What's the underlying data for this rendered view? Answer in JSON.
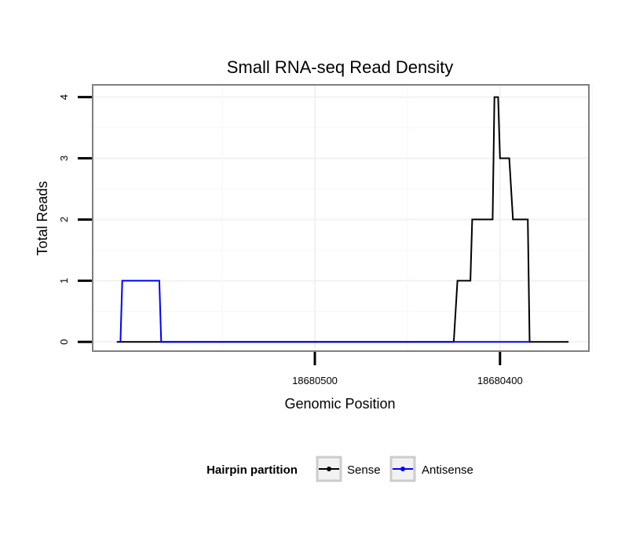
{
  "chart_data": {
    "type": "line",
    "title": "Small RNA-seq Read Density",
    "xlabel": "Genomic Position",
    "ylabel": "Total Reads",
    "x_reversed": true,
    "xlim": [
      18680620,
      18680352
    ],
    "ylim": [
      -0.15,
      4.2
    ],
    "x_ticks": [
      {
        "value": 18680500,
        "label": "18680500"
      },
      {
        "value": 18680400,
        "label": "18680400"
      }
    ],
    "y_ticks": [
      {
        "value": 0,
        "label": "0"
      },
      {
        "value": 1,
        "label": "1"
      },
      {
        "value": 2,
        "label": "2"
      },
      {
        "value": 3,
        "label": "3"
      },
      {
        "value": 4,
        "label": "4"
      }
    ],
    "grid": true,
    "legend": {
      "title": "Hairpin partition",
      "position": "bottom",
      "entries": [
        "Sense",
        "Antisense"
      ]
    },
    "series": [
      {
        "name": "Sense",
        "color": "#000000",
        "points": [
          [
            18680607,
            0
          ],
          [
            18680425,
            0
          ],
          [
            18680423,
            1
          ],
          [
            18680416,
            1
          ],
          [
            18680415,
            2
          ],
          [
            18680404,
            2
          ],
          [
            18680403,
            4
          ],
          [
            18680401,
            4
          ],
          [
            18680400,
            3
          ],
          [
            18680395,
            3
          ],
          [
            18680393,
            2
          ],
          [
            18680385,
            2
          ],
          [
            18680384,
            0
          ],
          [
            18680363,
            0
          ]
        ]
      },
      {
        "name": "Antisense",
        "color": "#0000ff",
        "points": [
          [
            18680605,
            0
          ],
          [
            18680604,
            1
          ],
          [
            18680584,
            1
          ],
          [
            18680583,
            0
          ],
          [
            18680424,
            0
          ],
          [
            18680384,
            0
          ]
        ]
      }
    ]
  }
}
